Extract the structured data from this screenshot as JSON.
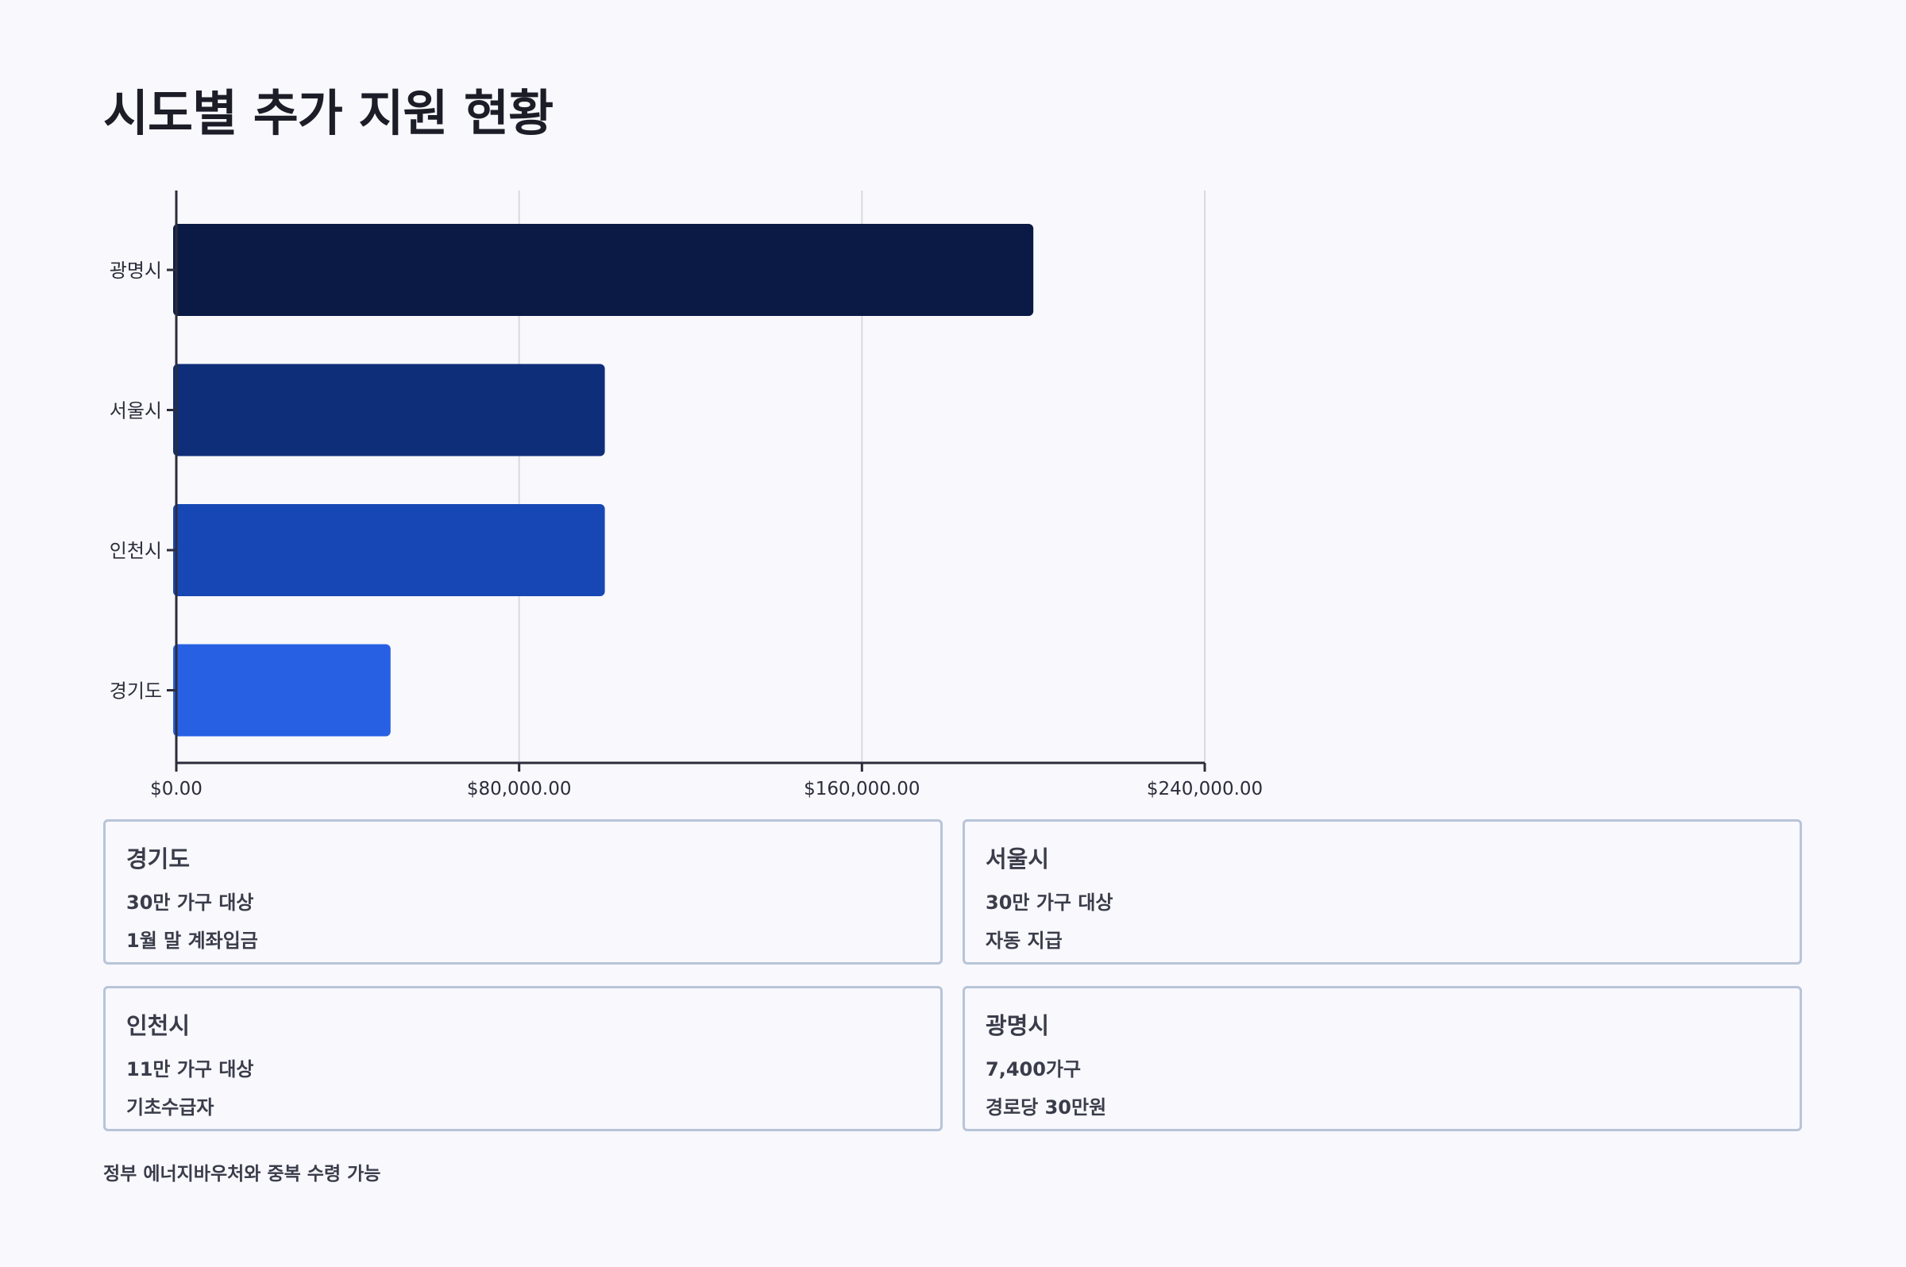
{
  "title": "시도별 추가 지원 현황",
  "chart_data": {
    "type": "bar",
    "orientation": "horizontal",
    "categories": [
      "광명시",
      "서울시",
      "인천시",
      "경기도"
    ],
    "values": [
      200000,
      100000,
      100000,
      50000
    ],
    "xlim": [
      0,
      240000
    ],
    "xticks": [
      0,
      80000,
      160000,
      240000
    ],
    "xtick_labels": [
      "$0.00",
      "$80,000.00",
      "$160,000.00",
      "$240,000.00"
    ],
    "grid": "vertical",
    "bar_colors": [
      "#0a1a44",
      "#0f2e7a",
      "#1747b5",
      "#2760e3"
    ]
  },
  "cards": [
    {
      "title": "경기도",
      "lines": [
        "30만 가구 대상",
        "1월 말 계좌입금"
      ]
    },
    {
      "title": "서울시",
      "lines": [
        "30만 가구 대상",
        "자동 지급"
      ]
    },
    {
      "title": "인천시",
      "lines": [
        "11만 가구 대상",
        "기초수급자"
      ]
    },
    {
      "title": "광명시",
      "lines": [
        "7,400가구",
        "경로당 30만원"
      ]
    }
  ],
  "footer": "정부 에너지바우처와 중복 수령 가능"
}
